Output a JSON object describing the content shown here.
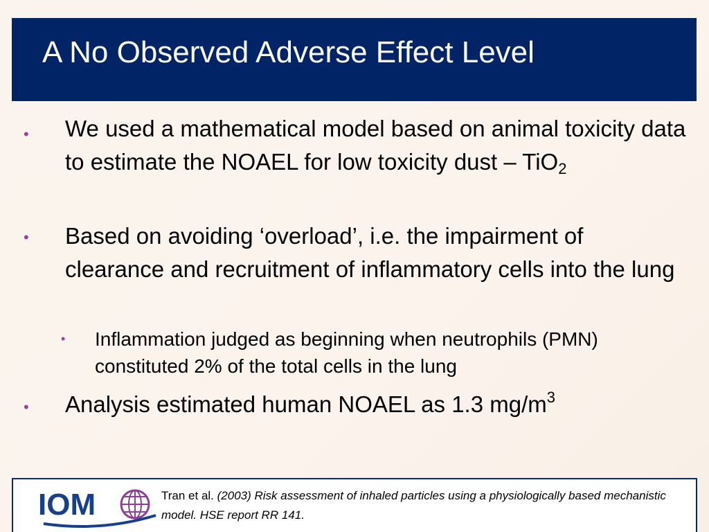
{
  "title": "A No Observed Adverse Effect Level",
  "bullets": {
    "b1": {
      "marker": "•",
      "text": "We used a mathematical model  based on animal toxicity data to estimate the NOAEL for low toxicity dust – TiO",
      "subscript": "2"
    },
    "b2": {
      "marker": "•",
      "text": "Based on avoiding ‘overload’, i.e. the impairment of clearance and recruitment of inflammatory cells into the lung"
    },
    "b2_sub": {
      "marker": "•",
      "text": "Inflammation judged as beginning when neutrophils (PMN) constituted 2% of the total cells in the lung"
    },
    "b3": {
      "marker": "•",
      "text": "Analysis estimated human NOAEL as 1.3 mg/m",
      "superscript": "3"
    }
  },
  "footer": {
    "logo_text": "IOM",
    "logo_icon": "globe-icon",
    "citation_author": "Tran et al. ",
    "citation_italic": "(2003) Risk assessment of inhaled particles using a physiologically based mechanistic model.  HSE report RR 141."
  },
  "colors": {
    "title_bar": "#002466",
    "bullet": "#9b3fa0",
    "logo_blue": "#163f8c",
    "globe_purple": "#8c3f96"
  }
}
